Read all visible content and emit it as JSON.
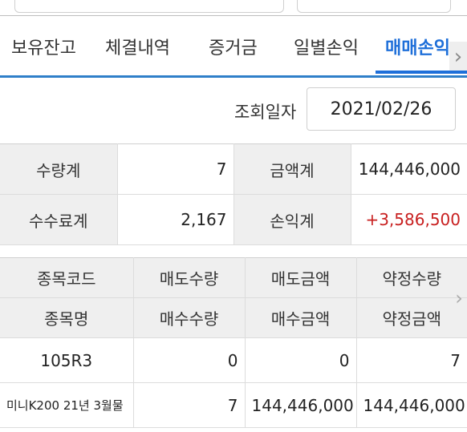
{
  "tabs": [
    "보유잔고",
    "체결내역",
    "증거금",
    "일별손익",
    "매매손익"
  ],
  "active_tab": "매매손익",
  "query": {
    "label": "조회일자",
    "date": "2021/02/26"
  },
  "summary": {
    "qty_label": "수량계",
    "qty_value": "7",
    "amount_label": "금액계",
    "amount_value": "144,446,000",
    "fee_label": "수수료계",
    "fee_value": "2,167",
    "pl_label": "손익계",
    "pl_value": "+3,586,500"
  },
  "grid": {
    "header_row1": [
      "종목코드",
      "매도수량",
      "매도금액",
      "약정수량"
    ],
    "header_row2": [
      "종목명",
      "매수수량",
      "매수금액",
      "약정금액"
    ],
    "rows": [
      {
        "code": "105R3",
        "sell_qty": "0",
        "sell_amount": "0",
        "contract_qty": "7"
      },
      {
        "name": "미니K200 21년 3월물",
        "buy_qty": "7",
        "buy_amount": "144,446,000",
        "contract_amount": "144,446,000"
      }
    ]
  },
  "colors": {
    "accent": "#1e6fd9",
    "profit": "#c81f1f",
    "header_bg": "#efefef"
  },
  "icons": {
    "tab_scroll": "chevron-right-icon",
    "grid_scroll": "chevron-right-icon"
  }
}
